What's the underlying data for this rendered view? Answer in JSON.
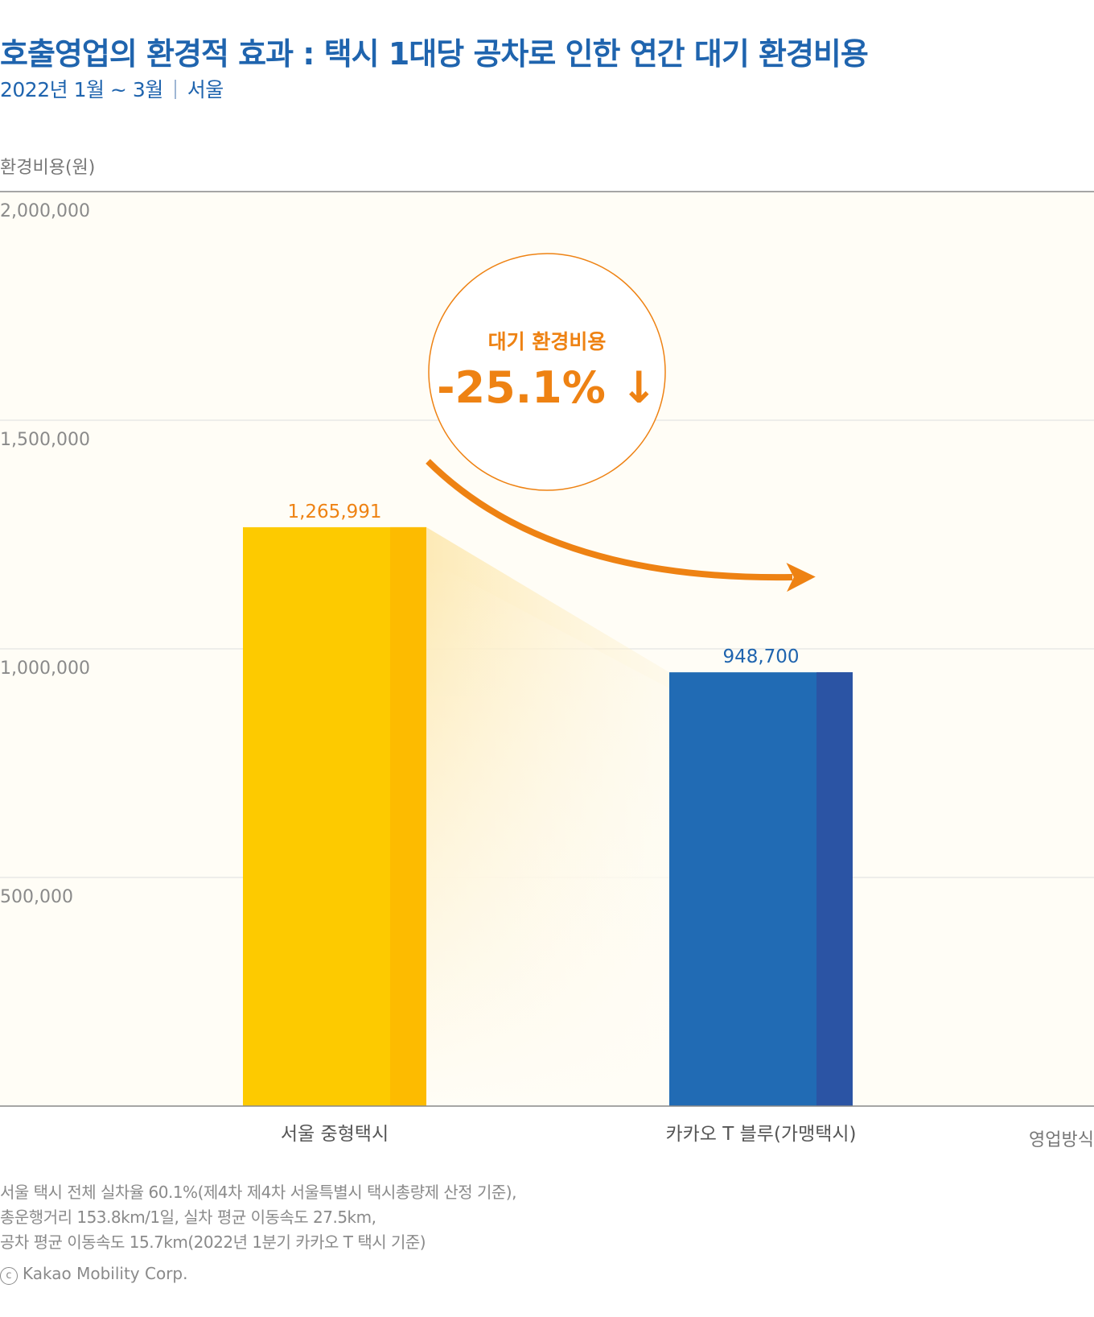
{
  "header": {
    "title": "호출영업의 환경적 효과 : 택시 1대당 공차로 인한 연간 대기 환경비용",
    "period": "2022년 1월 ~ 3월",
    "region": "서울"
  },
  "axes": {
    "ylabel": "환경비용(원)",
    "xlabel": "영업방식"
  },
  "badge": {
    "label": "대기 환경비용",
    "value": "-25.1% ↓"
  },
  "footnote": [
    "서울 택시 전체 실차율 60.1%(제4차 제4차 서울특별시 택시총량제 산정 기준),",
    "총운행거리 153.8km/1일, 실차 평균 이동속도 27.5km,",
    "공차 평균 이동속도 15.7km(2022년 1분기 카카오 T 택시 기준)"
  ],
  "copyright": "Kakao Mobility Corp.",
  "colors": {
    "title": "#1f64ae",
    "accent": "#ee8213",
    "bar1": "#fdca00",
    "bar1_shade": "#fdbb00",
    "bar2": "#216bb4",
    "bar2_shade": "#2b54a4",
    "plot_bg": "#fffdf6",
    "grid": "#dedede",
    "axis": "#888888"
  },
  "chart_data": {
    "type": "bar",
    "categories": [
      "서울 중형택시",
      "카카오 T 블루(가맹택시)"
    ],
    "values": [
      1265991,
      948700
    ],
    "value_labels": [
      "1,265,991",
      "948,700"
    ],
    "yticks": [
      "500,000",
      "1,000,000",
      "1,500,000",
      "2,000,000"
    ],
    "ytick_values": [
      500000,
      1000000,
      1500000,
      2000000
    ],
    "ylim": [
      0,
      2000000
    ],
    "grid": true,
    "ylabel": "환경비용(원)",
    "xlabel": "영업방식"
  }
}
